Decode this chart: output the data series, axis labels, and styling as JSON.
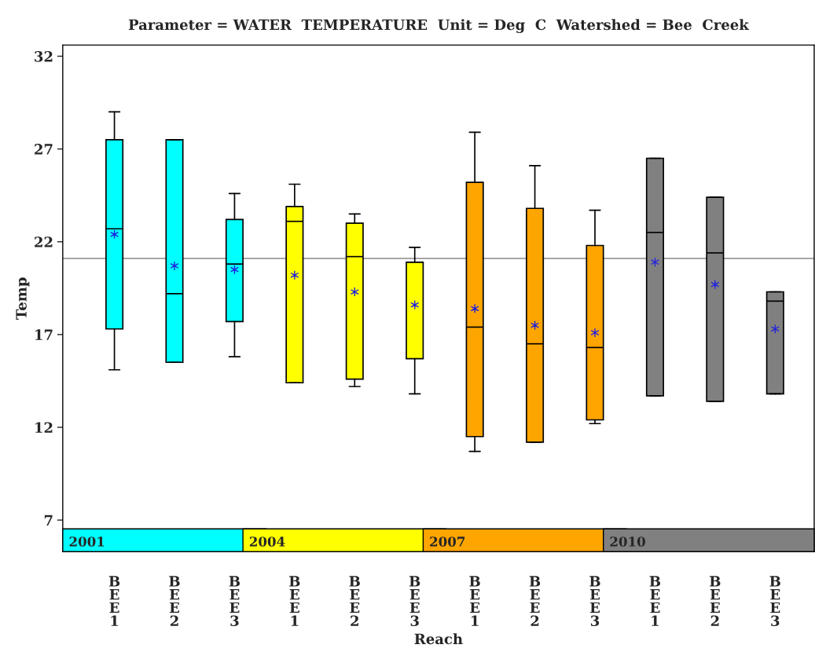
{
  "chart_data": {
    "type": "box",
    "title": "Parameter = WATER  TEMPERATURE  Unit = Deg  C  Watershed = Bee  Creek",
    "xlabel": "Reach",
    "ylabel": "Temp",
    "categories": [
      "BEE1",
      "BEE2",
      "BEE3",
      "BEE1",
      "BEE2",
      "BEE3",
      "BEE1",
      "BEE2",
      "BEE3",
      "BEE1",
      "BEE2",
      "BEE3"
    ],
    "ylim": [
      5.3,
      32.6
    ],
    "yticks": [
      7,
      12,
      17,
      22,
      27,
      32
    ],
    "grid": false,
    "ref_lines": [
      {
        "axis": "y",
        "value": 21.1,
        "color": "#888888"
      }
    ],
    "series": [
      {
        "name": "2001",
        "color": "#00ffff",
        "boxes": [
          {
            "low": 15.1,
            "q1": 17.3,
            "median": 22.7,
            "q3": 27.5,
            "high": 29.0,
            "mean": 22.4
          },
          {
            "low": 15.5,
            "q1": 15.5,
            "median": 19.2,
            "q3": 27.5,
            "high": 27.5,
            "mean": 20.7
          },
          {
            "low": 15.8,
            "q1": 17.7,
            "median": 20.8,
            "q3": 23.2,
            "high": 24.6,
            "mean": 20.5
          },
          null,
          null,
          null,
          null,
          null,
          null,
          null,
          null,
          null
        ]
      },
      {
        "name": "2004",
        "color": "#ffff00",
        "boxes": [
          null,
          null,
          null,
          {
            "low": 14.4,
            "q1": 14.4,
            "median": 23.1,
            "q3": 23.9,
            "high": 25.1,
            "mean": 20.2
          },
          {
            "low": 14.2,
            "q1": 14.6,
            "median": 21.2,
            "q3": 23.0,
            "high": 23.5,
            "mean": 19.3
          },
          {
            "low": 13.8,
            "q1": 15.7,
            "median": 20.9,
            "q3": 20.9,
            "high": 21.7,
            "mean": 18.6
          },
          null,
          null,
          null,
          null,
          null,
          null
        ]
      },
      {
        "name": "2007",
        "color": "#ffa500",
        "boxes": [
          null,
          null,
          null,
          null,
          null,
          null,
          {
            "low": 10.7,
            "q1": 11.5,
            "median": 17.4,
            "q3": 25.2,
            "high": 27.9,
            "mean": 18.4
          },
          {
            "low": 11.2,
            "q1": 11.2,
            "median": 16.5,
            "q3": 23.8,
            "high": 26.1,
            "mean": 17.5
          },
          {
            "low": 12.2,
            "q1": 12.4,
            "median": 16.3,
            "q3": 21.8,
            "high": 23.7,
            "mean": 17.1
          },
          null,
          null,
          null
        ]
      },
      {
        "name": "2010",
        "color": "#808080",
        "boxes": [
          null,
          null,
          null,
          null,
          null,
          null,
          null,
          null,
          null,
          {
            "low": 13.7,
            "q1": 13.7,
            "median": 22.5,
            "q3": 26.5,
            "high": 26.5,
            "mean": 20.9
          },
          {
            "low": 13.4,
            "q1": 13.4,
            "median": 21.4,
            "q3": 24.4,
            "high": 24.4,
            "mean": 19.7
          },
          {
            "low": 13.8,
            "q1": 13.8,
            "median": 18.8,
            "q3": 19.3,
            "high": 19.3,
            "mean": 17.3
          }
        ]
      }
    ]
  }
}
